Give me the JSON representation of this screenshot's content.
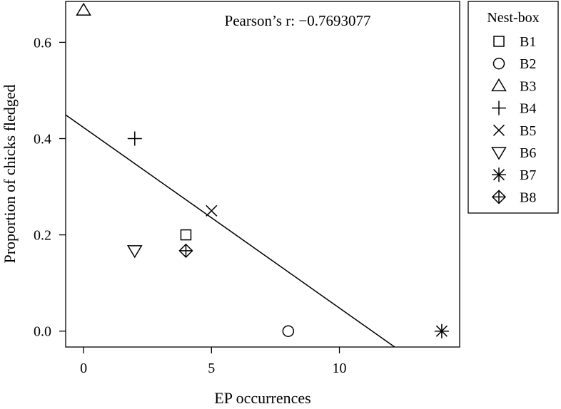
{
  "chart_data": {
    "type": "scatter",
    "xlabel": "EP occurrences",
    "ylabel": "Proportion of chicks fledged",
    "annotation": "Pearson’s r: −0.7693077",
    "xlim": [
      -0.7,
      14.7
    ],
    "ylim": [
      -0.033,
      0.685
    ],
    "xticks": [
      0,
      5,
      10
    ],
    "yticks": [
      0.0,
      0.2,
      0.4,
      0.6
    ],
    "ytick_labels": [
      "0.0",
      "0.2",
      "0.4",
      "0.6"
    ],
    "legend": {
      "title": "Nest-box",
      "position": "right"
    },
    "series": [
      {
        "name": "B1",
        "marker": "square",
        "x": 4,
        "y": 0.2
      },
      {
        "name": "B2",
        "marker": "circle",
        "x": 8,
        "y": 0.0
      },
      {
        "name": "B3",
        "marker": "triangle-up",
        "x": 0,
        "y": 0.667
      },
      {
        "name": "B4",
        "marker": "plus",
        "x": 2,
        "y": 0.4
      },
      {
        "name": "B5",
        "marker": "cross",
        "x": 5,
        "y": 0.25
      },
      {
        "name": "B6",
        "marker": "triangle-down",
        "x": 2,
        "y": 0.167
      },
      {
        "name": "B7",
        "marker": "asterisk",
        "x": 14,
        "y": 0.0
      },
      {
        "name": "B8",
        "marker": "diamond-plus",
        "x": 4,
        "y": 0.167
      }
    ],
    "regression_line": {
      "intercept": 0.423,
      "slope": -0.0375
    },
    "grid": false
  }
}
